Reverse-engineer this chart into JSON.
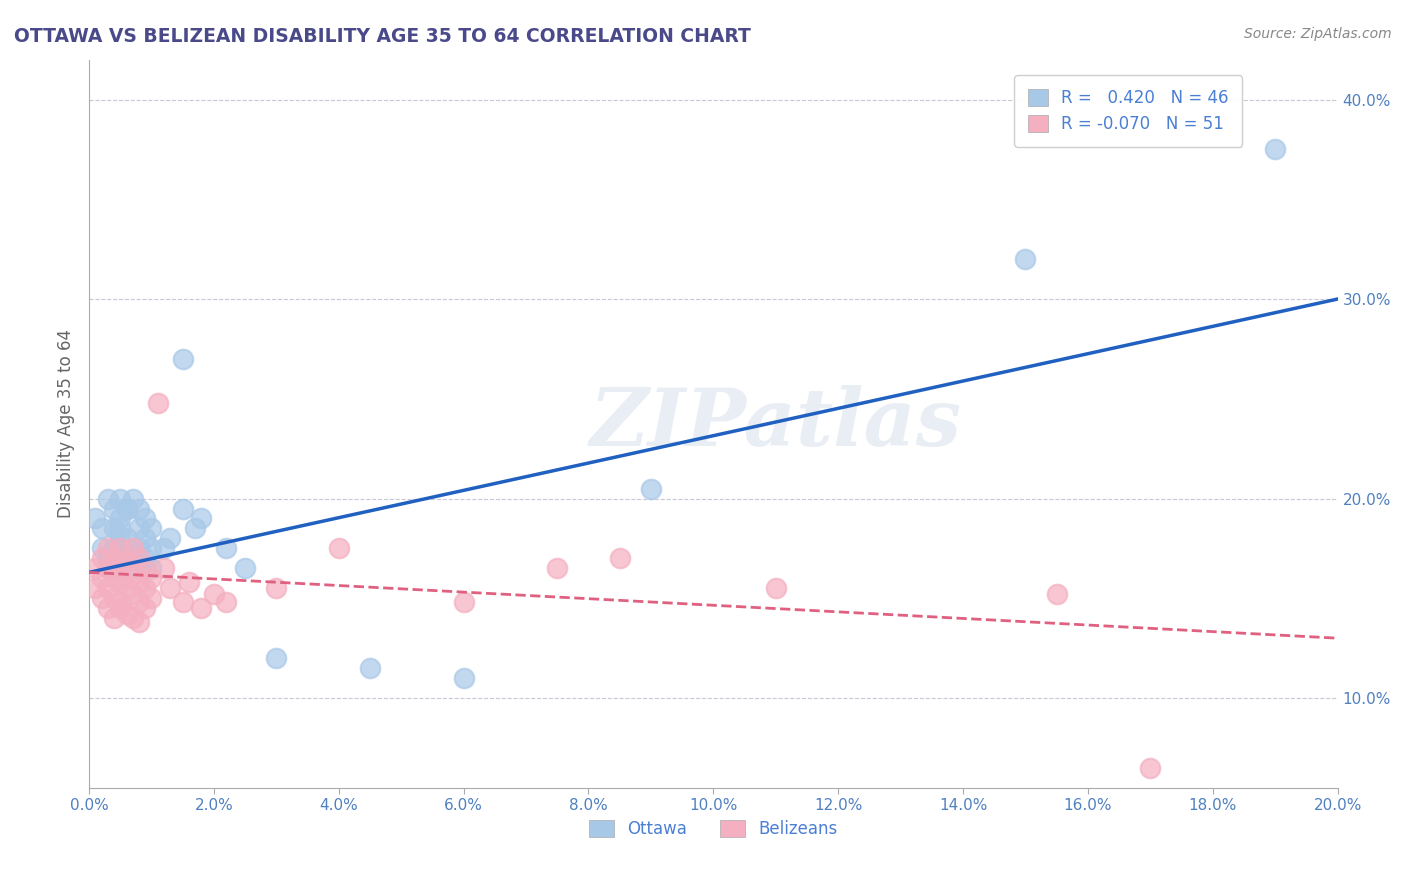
{
  "title": "OTTAWA VS BELIZEAN DISABILITY AGE 35 TO 64 CORRELATION CHART",
  "source": "Source: ZipAtlas.com",
  "ylabel": "Disability Age 35 to 64",
  "xlim": [
    0.0,
    0.2
  ],
  "ylim": [
    0.055,
    0.42
  ],
  "xticks": [
    0.0,
    0.02,
    0.04,
    0.06,
    0.08,
    0.1,
    0.12,
    0.14,
    0.16,
    0.18,
    0.2
  ],
  "yticks_right": [
    0.1,
    0.2,
    0.3,
    0.4
  ],
  "ottawa_R": 0.42,
  "ottawa_N": 46,
  "belizean_R": -0.07,
  "belizean_N": 51,
  "ottawa_color": "#a8c8e8",
  "belizean_color": "#f4afc0",
  "ottawa_line_color": "#2060c0",
  "belizean_line_color": "#e06080",
  "background_color": "#ffffff",
  "grid_color": "#c8c8d8",
  "title_color": "#4a4a8a",
  "axis_label_color": "#5080c0",
  "watermark": "ZIPatlas",
  "legend_R_color": "#4a7fd4",
  "ottawa_scatter_x": [
    0.001,
    0.002,
    0.002,
    0.003,
    0.003,
    0.003,
    0.004,
    0.004,
    0.004,
    0.004,
    0.005,
    0.005,
    0.005,
    0.005,
    0.005,
    0.005,
    0.006,
    0.006,
    0.006,
    0.006,
    0.007,
    0.007,
    0.007,
    0.008,
    0.008,
    0.008,
    0.009,
    0.009,
    0.009,
    0.01,
    0.01,
    0.01,
    0.012,
    0.013,
    0.015,
    0.015,
    0.017,
    0.018,
    0.022,
    0.025,
    0.03,
    0.045,
    0.06,
    0.09,
    0.15,
    0.19
  ],
  "ottawa_scatter_y": [
    0.19,
    0.185,
    0.175,
    0.2,
    0.17,
    0.165,
    0.185,
    0.195,
    0.175,
    0.165,
    0.2,
    0.185,
    0.175,
    0.165,
    0.19,
    0.18,
    0.195,
    0.18,
    0.17,
    0.195,
    0.2,
    0.175,
    0.165,
    0.185,
    0.195,
    0.175,
    0.18,
    0.17,
    0.19,
    0.185,
    0.175,
    0.165,
    0.175,
    0.18,
    0.27,
    0.195,
    0.185,
    0.19,
    0.175,
    0.165,
    0.12,
    0.115,
    0.11,
    0.205,
    0.32,
    0.375
  ],
  "belizean_scatter_x": [
    0.001,
    0.001,
    0.002,
    0.002,
    0.002,
    0.003,
    0.003,
    0.003,
    0.003,
    0.004,
    0.004,
    0.004,
    0.004,
    0.005,
    0.005,
    0.005,
    0.005,
    0.005,
    0.005,
    0.006,
    0.006,
    0.006,
    0.007,
    0.007,
    0.007,
    0.007,
    0.008,
    0.008,
    0.008,
    0.008,
    0.009,
    0.009,
    0.009,
    0.01,
    0.01,
    0.011,
    0.012,
    0.013,
    0.015,
    0.016,
    0.018,
    0.02,
    0.022,
    0.03,
    0.04,
    0.06,
    0.075,
    0.085,
    0.11,
    0.155,
    0.17
  ],
  "belizean_scatter_y": [
    0.165,
    0.155,
    0.17,
    0.16,
    0.15,
    0.165,
    0.155,
    0.145,
    0.175,
    0.16,
    0.17,
    0.15,
    0.14,
    0.168,
    0.158,
    0.148,
    0.175,
    0.16,
    0.145,
    0.168,
    0.155,
    0.142,
    0.175,
    0.162,
    0.152,
    0.14,
    0.17,
    0.158,
    0.148,
    0.138,
    0.165,
    0.155,
    0.145,
    0.16,
    0.15,
    0.248,
    0.165,
    0.155,
    0.148,
    0.158,
    0.145,
    0.152,
    0.148,
    0.155,
    0.175,
    0.148,
    0.165,
    0.17,
    0.155,
    0.152,
    0.065
  ],
  "ottawa_trend_x": [
    0.0,
    0.2
  ],
  "ottawa_trend_y": [
    0.163,
    0.3
  ],
  "belizean_trend_x": [
    0.0,
    0.2
  ],
  "belizean_trend_y": [
    0.163,
    0.13
  ]
}
